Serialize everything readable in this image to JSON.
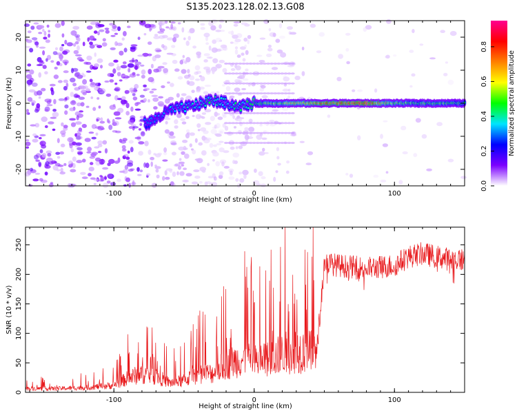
{
  "title": "S135.2023.128.02.13.G08",
  "chart_data": [
    {
      "type": "heatmap",
      "title": "S135.2023.128.02.13.G08",
      "xlabel": "Height of straight line (km)",
      "ylabel": "Frequency (Hz)",
      "xlim": [
        -163,
        150
      ],
      "ylim": [
        -25,
        25
      ],
      "x_ticks": [
        -100,
        0,
        100
      ],
      "y_ticks": [
        -20,
        -10,
        0,
        10,
        20
      ],
      "colorbar": {
        "label": "Normalized spectral amplitude",
        "range": [
          0.0,
          0.95
        ],
        "ticks": [
          0.0,
          0.2,
          0.4,
          0.6,
          0.8
        ],
        "colormap": [
          "#ffffff",
          "#7b00ff",
          "#0000ff",
          "#00e5ff",
          "#00ff00",
          "#ffff00",
          "#ff8000",
          "#ff0000",
          "#ff0090"
        ]
      },
      "ridge": {
        "description_points_x": [
          -75,
          -60,
          -45,
          -30,
          -20,
          -10,
          0,
          20,
          60,
          80,
          100,
          120,
          150
        ],
        "frequency_hz": [
          -6,
          -2,
          -1,
          1,
          0,
          -1,
          0,
          0,
          0,
          0,
          0,
          0,
          0
        ],
        "peak_amplitude": [
          0.3,
          0.35,
          0.4,
          0.45,
          0.4,
          0.45,
          0.5,
          0.6,
          0.85,
          0.9,
          0.55,
          0.55,
          0.5
        ]
      }
    },
    {
      "type": "line",
      "xlabel": "Height of straight line (km)",
      "ylabel": "SNR (10 * v/v)",
      "xlim": [
        -163,
        150
      ],
      "ylim": [
        0,
        280
      ],
      "x_ticks": [
        -100,
        0,
        100
      ],
      "y_ticks": [
        0,
        50,
        100,
        150,
        200,
        250
      ],
      "color": "#e8191c",
      "series": [
        {
          "x": [
            -163,
            -140,
            -120,
            -100,
            -90,
            -80,
            -70,
            -60,
            -50,
            -40,
            -30,
            -20,
            -10,
            0,
            10,
            20,
            30,
            40,
            45,
            50,
            60,
            80,
            100,
            110,
            120,
            130,
            140,
            150
          ],
          "values": [
            8,
            8,
            10,
            15,
            30,
            40,
            35,
            20,
            25,
            40,
            40,
            60,
            70,
            65,
            70,
            80,
            90,
            85,
            80,
            220,
            215,
            210,
            215,
            230,
            235,
            230,
            225,
            225
          ]
        }
      ]
    }
  ]
}
